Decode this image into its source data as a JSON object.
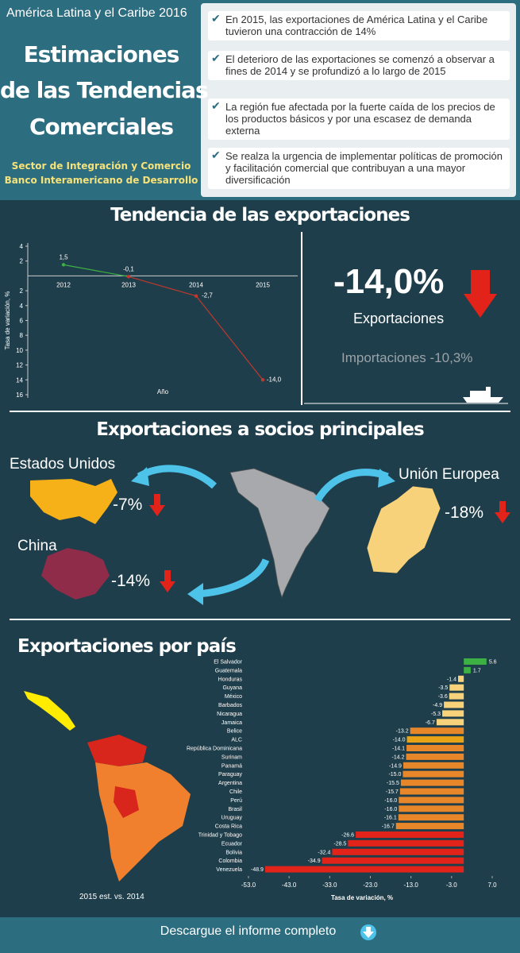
{
  "header": {
    "kicker": "América Latina y el Caribe 2016",
    "title_lines": [
      "Estimaciones",
      "de las Tendencias",
      "Comerciales"
    ],
    "org_lines": [
      "Sector de Integración y Comercio",
      "Banco Interamericano de Desarrollo"
    ]
  },
  "bullets": [
    "En 2015, las exportaciones de América Latina y el Caribe tuvieron una contracción de 14%",
    "El deterioro de las exportaciones se comenzó a observar a fines de 2014 y se profundizó a lo largo de 2015",
    "La región fue afectada por la fuerte caída de los precios de los productos básicos y por una escasez de demanda externa",
    "Se realza la urgencia de implementar políticas de promoción y facilitación comercial que contribuyan a una mayor diversificación"
  ],
  "trend": {
    "title": "Tendencia de las exportaciones",
    "headline": "-14,0%",
    "headline_label": "Exportaciones",
    "imports": "Importaciones -10,3%"
  },
  "partners": {
    "title": "Exportaciones a socios principales",
    "items": [
      {
        "name": "Estados Unidos",
        "change": "-7%"
      },
      {
        "name": "China",
        "change": "-14%"
      },
      {
        "name": "Unión Europea",
        "change": "-18%"
      }
    ]
  },
  "countries": {
    "title": "Exportaciones por país",
    "map_caption": "2015 est. vs. 2014"
  },
  "footer": {
    "link": "Descargue el informe completo"
  },
  "chart_data": [
    {
      "type": "line",
      "categories": [
        "2012",
        "2013",
        "2014",
        "2015"
      ],
      "values": [
        1.5,
        -0.1,
        -2.7,
        -14.0
      ],
      "value_labels": [
        "1,5",
        "-0,1",
        "-2,7",
        "-14,0"
      ],
      "colors": [
        "#3cb043",
        "#c0392b",
        "#c0392b",
        "#c0392b"
      ],
      "ylim": [
        -16,
        4
      ],
      "yticks": [
        4,
        2,
        {
          "value": -2,
          "label": "2"
        },
        {
          "value": -4,
          "label": "4"
        },
        {
          "value": -6,
          "label": "6"
        },
        {
          "value": -8,
          "label": "8"
        },
        {
          "value": -10,
          "label": "10"
        },
        {
          "value": -12,
          "label": "12"
        },
        {
          "value": -14,
          "label": "14"
        },
        {
          "value": -16,
          "label": "16"
        }
      ],
      "y_label": "Tasa de variación, %",
      "x_label": "Año"
    },
    {
      "type": "hbar",
      "categories": [
        "El Salvador",
        "Guatemala",
        "Honduras",
        "Guyana",
        "México",
        "Barbados",
        "Nicaragua",
        "Jamaica",
        "Belice",
        "ALC",
        "República Dominicana",
        "Surinam",
        "Panamá",
        "Paraguay",
        "Argentina",
        "Chile",
        "Perú",
        "Brasil",
        "Uruguay",
        "Costa Rica",
        "Trinidad y Tobago",
        "Ecuador",
        "Bolivia",
        "Colombia",
        "Venezuela"
      ],
      "values": [
        5.6,
        1.7,
        -1.4,
        -3.5,
        -3.6,
        -4.9,
        -5.3,
        -6.7,
        -13.2,
        -14.0,
        -14.1,
        -14.2,
        -14.9,
        -15.0,
        -15.5,
        -15.7,
        -16.0,
        -16.0,
        -16.1,
        -16.7,
        -26.6,
        -28.5,
        -32.4,
        -34.9,
        -48.9
      ],
      "value_labels": [
        "5.6",
        "1.7",
        "-1.4",
        "-3.5",
        "-3.6",
        "-4.9",
        "-5.3",
        "-6.7",
        "-13.2",
        "-14.0",
        "-14.1",
        "-14.2",
        "-14.9",
        "-15.0",
        "-15.5",
        "-15.7",
        "-16.0",
        "-16.0",
        "-16.1",
        "-16.7",
        "-26.6",
        "-28.5",
        "-32.4",
        "-34.9",
        "-48.9"
      ],
      "colors": [
        "#3cb043",
        "#3cb043",
        "#f7d27a",
        "#f7d27a",
        "#f7d27a",
        "#f7d27a",
        "#f7d27a",
        "#f7d27a",
        "#e8862a",
        "#e8a317",
        "#e8862a",
        "#e8862a",
        "#e8862a",
        "#e8862a",
        "#e8862a",
        "#e8862a",
        "#e8862a",
        "#e8862a",
        "#e8862a",
        "#e8862a",
        "#e2231a",
        "#e2231a",
        "#e2231a",
        "#e2231a",
        "#e2231a"
      ],
      "xlim": [
        -53,
        7
      ],
      "xticks": [
        {
          "value": -53,
          "label": "-53.0"
        },
        {
          "value": -43,
          "label": "-43.0"
        },
        {
          "value": -33,
          "label": "-33.0"
        },
        {
          "value": -23,
          "label": "-23.0"
        },
        {
          "value": -13,
          "label": "-13.0"
        },
        {
          "value": -3,
          "label": "-3.0"
        },
        {
          "value": 7,
          "label": "7.0"
        }
      ],
      "x_label": "Tasa de variación, %"
    }
  ]
}
